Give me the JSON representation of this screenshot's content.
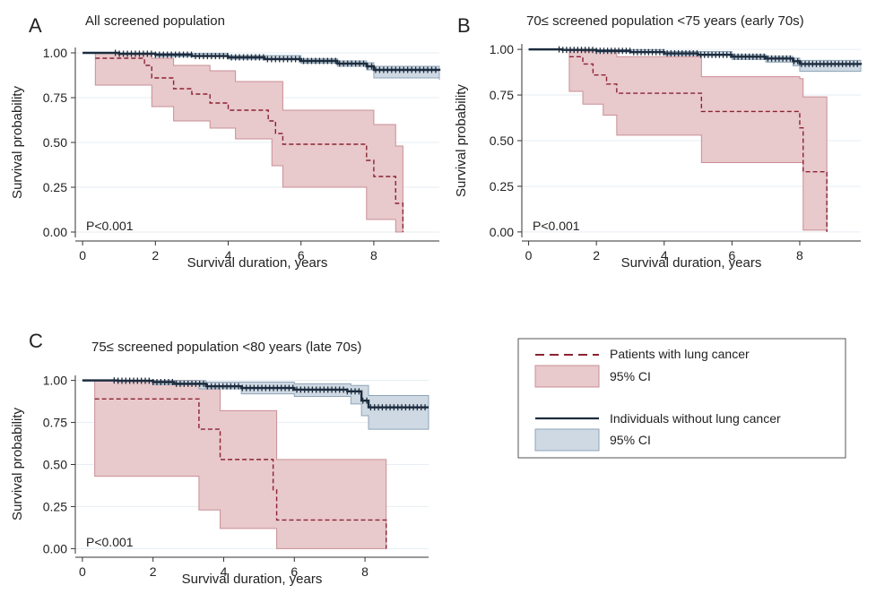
{
  "colors": {
    "cancer_line": "#8b2332",
    "cancer_ci_fill": "#e8c9cc",
    "cancer_ci_edge": "#c98f96",
    "noncancer_line": "#1c2c3e",
    "noncancer_ci_fill": "#cfd9e3",
    "noncancer_ci_edge": "#8ea4b8",
    "gridline": "#e6edf3",
    "axis": "#333333"
  },
  "legend": {
    "items": [
      {
        "label": "Patients with lung cancer",
        "kind": "dashed-line",
        "color_key": "cancer_line"
      },
      {
        "label": "95% CI",
        "kind": "fill",
        "color_key": "cancer_ci_fill"
      },
      {
        "label": "Individuals without lung cancer",
        "kind": "solid-line",
        "color_key": "noncancer_line"
      },
      {
        "label": "95% CI",
        "kind": "fill",
        "color_key": "noncancer_ci_fill"
      }
    ]
  },
  "chart_data": [
    {
      "type": "line",
      "panel_letter": "A",
      "title": "All screened population",
      "xlabel": "Survival duration, years",
      "ylabel": "Survival probability",
      "xlim": [
        -0.2,
        9.8
      ],
      "ylim": [
        -0.03,
        1.03
      ],
      "xticks": [
        0,
        2,
        4,
        6,
        8
      ],
      "yticks": [
        "0.00",
        "0.25",
        "0.50",
        "0.75",
        "1.00"
      ],
      "grid": "horizontal",
      "annotation": "P<0.001",
      "series": [
        {
          "name": "Patients with lung cancer",
          "style": "step-dashed",
          "points": [
            [
              0.35,
              0.97
            ],
            [
              1.7,
              0.93
            ],
            [
              1.9,
              0.86
            ],
            [
              2.5,
              0.8
            ],
            [
              3.0,
              0.77
            ],
            [
              3.5,
              0.72
            ],
            [
              4.0,
              0.68
            ],
            [
              5.1,
              0.62
            ],
            [
              5.3,
              0.55
            ],
            [
              5.5,
              0.49
            ],
            [
              7.8,
              0.4
            ],
            [
              8.0,
              0.31
            ],
            [
              8.6,
              0.16
            ],
            [
              8.8,
              0.0
            ]
          ],
          "ci_lower": [
            [
              0.35,
              0.82
            ],
            [
              1.9,
              0.7
            ],
            [
              2.5,
              0.62
            ],
            [
              3.5,
              0.58
            ],
            [
              4.2,
              0.52
            ],
            [
              5.2,
              0.37
            ],
            [
              5.5,
              0.25
            ],
            [
              7.8,
              0.07
            ],
            [
              8.6,
              0.0
            ],
            [
              8.8,
              0.0
            ]
          ],
          "ci_upper": [
            [
              0.35,
              1.0
            ],
            [
              1.9,
              0.97
            ],
            [
              2.5,
              0.93
            ],
            [
              3.5,
              0.9
            ],
            [
              4.2,
              0.84
            ],
            [
              5.5,
              0.68
            ],
            [
              7.8,
              0.68
            ],
            [
              8.0,
              0.6
            ],
            [
              8.6,
              0.48
            ],
            [
              8.8,
              0.48
            ]
          ]
        },
        {
          "name": "Individuals without lung cancer",
          "style": "step-solid",
          "points": [
            [
              0,
              1.0
            ],
            [
              1,
              0.995
            ],
            [
              2,
              0.99
            ],
            [
              3,
              0.982
            ],
            [
              4,
              0.975
            ],
            [
              5,
              0.965
            ],
            [
              6,
              0.955
            ],
            [
              7,
              0.94
            ],
            [
              7.8,
              0.925
            ],
            [
              8,
              0.905
            ],
            [
              9.8,
              0.9
            ]
          ],
          "ci_lower": [
            [
              0,
              1.0
            ],
            [
              2,
              0.98
            ],
            [
              4,
              0.965
            ],
            [
              6,
              0.942
            ],
            [
              7,
              0.925
            ],
            [
              7.8,
              0.905
            ],
            [
              8,
              0.86
            ],
            [
              9.8,
              0.85
            ]
          ],
          "ci_upper": [
            [
              0,
              1.0
            ],
            [
              2,
              0.997
            ],
            [
              4,
              0.985
            ],
            [
              6,
              0.967
            ],
            [
              7,
              0.955
            ],
            [
              7.8,
              0.945
            ],
            [
              8,
              0.925
            ],
            [
              9.8,
              0.925
            ]
          ]
        }
      ]
    },
    {
      "type": "line",
      "panel_letter": "B",
      "title": "70≤ screened population <75 years (early 70s)",
      "xlabel": "Survival duration, years",
      "ylabel": "Survival probability",
      "xlim": [
        -0.2,
        9.8
      ],
      "ylim": [
        -0.03,
        1.03
      ],
      "xticks": [
        0,
        2,
        4,
        6,
        8
      ],
      "yticks": [
        "0.00",
        "0.25",
        "0.50",
        "0.75",
        "1.00"
      ],
      "grid": "horizontal",
      "annotation": "P<0.001",
      "series": [
        {
          "name": "Patients with lung cancer",
          "style": "step-dashed",
          "points": [
            [
              1.2,
              0.96
            ],
            [
              1.6,
              0.92
            ],
            [
              1.9,
              0.86
            ],
            [
              2.3,
              0.81
            ],
            [
              2.6,
              0.76
            ],
            [
              5.1,
              0.66
            ],
            [
              8.0,
              0.57
            ],
            [
              8.1,
              0.33
            ],
            [
              8.8,
              0.0
            ]
          ],
          "ci_lower": [
            [
              1.2,
              0.77
            ],
            [
              1.6,
              0.7
            ],
            [
              2.2,
              0.64
            ],
            [
              2.6,
              0.53
            ],
            [
              5.1,
              0.38
            ],
            [
              8.0,
              0.38
            ],
            [
              8.1,
              0.01
            ],
            [
              8.8,
              0.01
            ]
          ],
          "ci_upper": [
            [
              1.2,
              1.0
            ],
            [
              1.6,
              0.99
            ],
            [
              2.6,
              0.96
            ],
            [
              5.1,
              0.85
            ],
            [
              8.0,
              0.84
            ],
            [
              8.1,
              0.74
            ],
            [
              8.8,
              0.74
            ]
          ]
        },
        {
          "name": "Individuals without lung cancer",
          "style": "step-solid",
          "points": [
            [
              0,
              1.0
            ],
            [
              1,
              0.997
            ],
            [
              2,
              0.992
            ],
            [
              3,
              0.985
            ],
            [
              4,
              0.978
            ],
            [
              5,
              0.97
            ],
            [
              6,
              0.96
            ],
            [
              7,
              0.95
            ],
            [
              7.8,
              0.935
            ],
            [
              8,
              0.92
            ],
            [
              9.8,
              0.915
            ]
          ],
          "ci_lower": [
            [
              0,
              1.0
            ],
            [
              2,
              0.985
            ],
            [
              4,
              0.968
            ],
            [
              6,
              0.945
            ],
            [
              7,
              0.93
            ],
            [
              7.8,
              0.91
            ],
            [
              8,
              0.88
            ],
            [
              9.8,
              0.88
            ]
          ],
          "ci_upper": [
            [
              0,
              1.0
            ],
            [
              2,
              0.998
            ],
            [
              4,
              0.988
            ],
            [
              6,
              0.972
            ],
            [
              7,
              0.962
            ],
            [
              7.8,
              0.952
            ],
            [
              8,
              0.94
            ],
            [
              9.8,
              0.94
            ]
          ]
        }
      ]
    },
    {
      "type": "line",
      "panel_letter": "C",
      "title": "75≤ screened population <80 years (late 70s)",
      "xlabel": "Survival duration, years",
      "ylabel": "Survival probability",
      "xlim": [
        -0.2,
        9.8
      ],
      "ylim": [
        -0.03,
        1.03
      ],
      "xticks": [
        0,
        2,
        4,
        6,
        8
      ],
      "yticks": [
        "0.00",
        "0.25",
        "0.50",
        "0.75",
        "1.00"
      ],
      "grid": "horizontal",
      "annotation": "P<0.001",
      "series": [
        {
          "name": "Patients with lung cancer",
          "style": "step-dashed",
          "points": [
            [
              0.35,
              0.89
            ],
            [
              2.9,
              0.89
            ],
            [
              3.3,
              0.71
            ],
            [
              3.9,
              0.53
            ],
            [
              5.4,
              0.35
            ],
            [
              5.5,
              0.17
            ],
            [
              8.6,
              0.0
            ]
          ],
          "ci_lower": [
            [
              0.35,
              0.43
            ],
            [
              3.3,
              0.23
            ],
            [
              3.9,
              0.12
            ],
            [
              5.5,
              0.0
            ],
            [
              8.6,
              0.0
            ]
          ],
          "ci_upper": [
            [
              0.35,
              1.0
            ],
            [
              3.3,
              0.95
            ],
            [
              3.9,
              0.82
            ],
            [
              5.5,
              0.53
            ],
            [
              8.6,
              0.53
            ]
          ]
        },
        {
          "name": "Individuals without lung cancer",
          "style": "step-solid",
          "points": [
            [
              0,
              1.0
            ],
            [
              1,
              0.998
            ],
            [
              2,
              0.99
            ],
            [
              2.6,
              0.98
            ],
            [
              3.5,
              0.965
            ],
            [
              4.5,
              0.955
            ],
            [
              6,
              0.945
            ],
            [
              7.5,
              0.935
            ],
            [
              7.9,
              0.88
            ],
            [
              8.1,
              0.84
            ],
            [
              9.8,
              0.84
            ]
          ],
          "ci_lower": [
            [
              0,
              1.0
            ],
            [
              2,
              0.975
            ],
            [
              3.3,
              0.95
            ],
            [
              4.5,
              0.92
            ],
            [
              6,
              0.905
            ],
            [
              7.6,
              0.86
            ],
            [
              7.9,
              0.79
            ],
            [
              8.1,
              0.71
            ],
            [
              9.8,
              0.71
            ]
          ],
          "ci_upper": [
            [
              0,
              1.0
            ],
            [
              2,
              0.999
            ],
            [
              3.5,
              0.99
            ],
            [
              6,
              0.98
            ],
            [
              7.6,
              0.97
            ],
            [
              8.1,
              0.91
            ],
            [
              9.8,
              0.91
            ]
          ]
        }
      ]
    }
  ]
}
